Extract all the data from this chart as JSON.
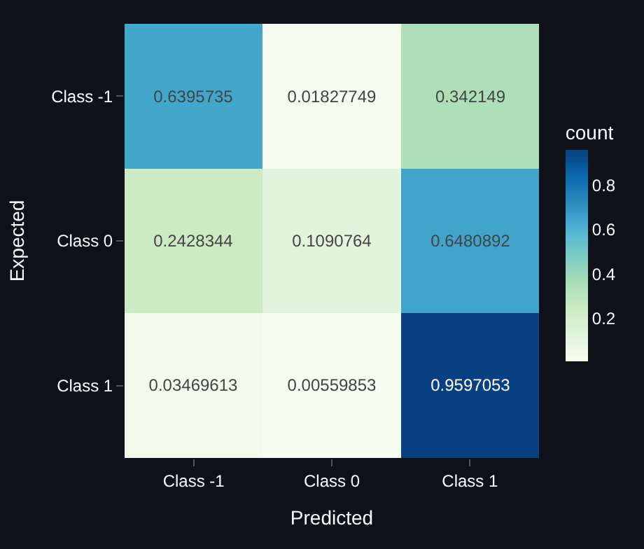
{
  "chart_data": {
    "type": "heatmap",
    "xlabel": "Predicted",
    "ylabel": "Expected",
    "clabel": "count",
    "categories": [
      "Class -1",
      "Class 0",
      "Class 1"
    ],
    "y_categories": [
      "Class -1",
      "Class 0",
      "Class 1"
    ],
    "cells": [
      [
        0.6395735,
        0.01827749,
        0.342149
      ],
      [
        0.2428344,
        0.1090764,
        0.6480892
      ],
      [
        0.03469613,
        0.00559853,
        0.9597053
      ]
    ],
    "clim": [
      0.00559853,
      0.9597053
    ],
    "cticks": [
      0.2,
      0.4,
      0.6,
      0.8
    ],
    "data_labels": true
  }
}
